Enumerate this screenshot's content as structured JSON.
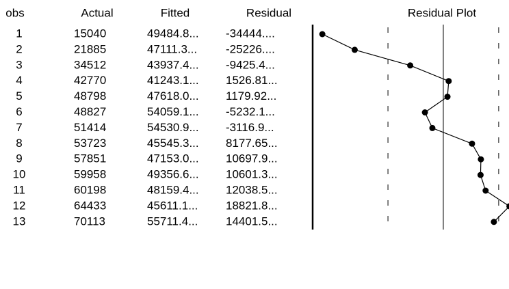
{
  "table": {
    "headers": [
      "obs",
      "Actual",
      "Fitted",
      "Residual",
      "Residual Plot"
    ],
    "rows": [
      [
        "1",
        "15040",
        "49484.8...",
        "-34444...."
      ],
      [
        "2",
        "21885",
        "47111.3...",
        "-25226...."
      ],
      [
        "3",
        "34512",
        "43937.4...",
        "-9425.4..."
      ],
      [
        "4",
        "42770",
        "41243.1...",
        "1526.81..."
      ],
      [
        "5",
        "48798",
        "47618.0...",
        "1179.92..."
      ],
      [
        "6",
        "48827",
        "54059.1...",
        "-5232.1..."
      ],
      [
        "7",
        "51414",
        "54530.9...",
        "-3116.9..."
      ],
      [
        "8",
        "53723",
        "45545.3...",
        "8177.65..."
      ],
      [
        "9",
        "57851",
        "47153.0...",
        "10697.9..."
      ],
      [
        "10",
        "59958",
        "49356.6...",
        "10601.3..."
      ],
      [
        "11",
        "60198",
        "48159.4...",
        "12038.5..."
      ],
      [
        "12",
        "64433",
        "45611.1...",
        "18821.8..."
      ],
      [
        "13",
        "70113",
        "55711.4...",
        "14401.5..."
      ]
    ]
  },
  "residual_plot": {
    "values": [
      -34444.8,
      -25226.3,
      -9425.4,
      1526.8,
      1179.9,
      -5232.1,
      -3116.9,
      8177.7,
      10697.9,
      10601.3,
      12038.5,
      18821.8,
      14401.5
    ],
    "xlim": [
      -37200,
      18700
    ],
    "reference_lines": [
      -15760,
      0,
      15760
    ]
  }
}
